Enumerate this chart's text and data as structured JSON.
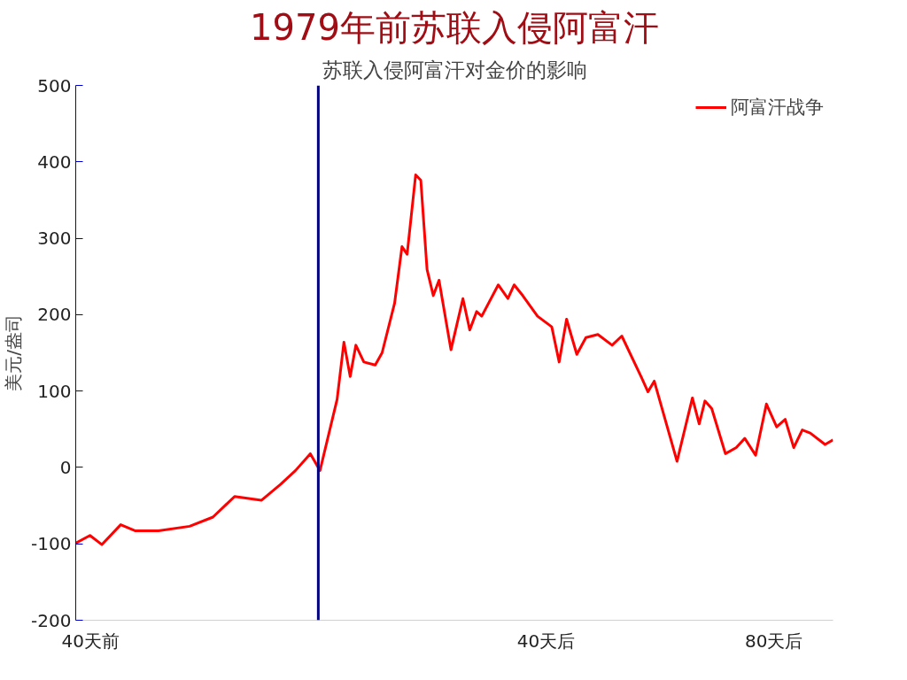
{
  "chart_data": {
    "type": "line",
    "title": "1979年前苏联入侵阿富汗",
    "subtitle": "苏联入侵阿富汗对金价的影响",
    "ylabel": "美元/盎司",
    "x": [
      -42.6,
      -40.1,
      -38,
      -34.7,
      -32.1,
      -28.1,
      -22.6,
      -18.5,
      -14.7,
      -10,
      -6.6,
      -4,
      -1.4,
      0.3,
      3.3,
      4.5,
      5.6,
      6.6,
      8,
      10,
      11.2,
      13.4,
      14.7,
      15.6,
      17.1,
      18,
      19.1,
      20.2,
      21.2,
      23.3,
      25.4,
      26.6,
      27.8,
      28.7,
      31.6,
      33.3,
      34.4,
      35.9,
      38.5,
      41,
      42.3,
      43.6,
      45.4,
      47,
      49.1,
      51.6,
      53.3,
      56.8,
      57.9,
      59,
      63,
      65.7,
      66.9,
      67.9,
      69.1,
      71.5,
      73.4,
      74.9,
      76.8,
      78.7,
      80.5,
      82,
      83.5,
      85,
      86.4,
      89,
      90.4
    ],
    "series": [
      {
        "name": "阿富汗战争",
        "color": "#ff0000",
        "values": [
          -99,
          -89,
          -101,
          -75,
          -83,
          -83,
          -77,
          -65,
          -38,
          -43,
          -22,
          -4,
          18,
          -4,
          89,
          164,
          119,
          160,
          138,
          134,
          150,
          215,
          289,
          279,
          383,
          376,
          259,
          225,
          245,
          154,
          221,
          180,
          204,
          198,
          239,
          221,
          239,
          225,
          198,
          184,
          138,
          194,
          148,
          170,
          174,
          160,
          172,
          117,
          99,
          113,
          8,
          91,
          57,
          87,
          77,
          18,
          26,
          38,
          16,
          83,
          53,
          63,
          26,
          49,
          45,
          30,
          36
        ]
      }
    ],
    "xlim": [
      -42.6,
      90.4
    ],
    "xticks": [
      {
        "value": -40,
        "label": "40天前"
      },
      {
        "value": 40,
        "label": "40天后"
      },
      {
        "value": 80,
        "label": "80天后"
      }
    ],
    "ylim": [
      -200,
      500
    ],
    "yticks": [
      -200,
      -100,
      0,
      100,
      200,
      300,
      400,
      500
    ],
    "ref_lines": [
      {
        "axis": "x",
        "value": 0,
        "label": null,
        "color": "#000080"
      }
    ],
    "grid": false,
    "legend": "top right",
    "marker": "none",
    "line_style": "solid"
  }
}
